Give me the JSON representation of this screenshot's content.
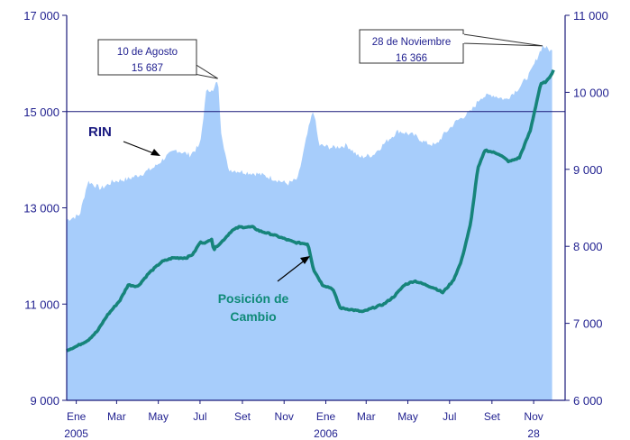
{
  "chart_data": {
    "type": "area",
    "title": "",
    "xlabel": "",
    "ylabel": "",
    "left_axis": {
      "ylim": [
        9000,
        17000
      ],
      "ticks": [
        9000,
        11000,
        13000,
        15000,
        17000
      ],
      "tick_labels": [
        "9 000",
        "11 000",
        "13 000",
        "15 000",
        "17 000"
      ]
    },
    "right_axis": {
      "ylim": [
        6000,
        11000
      ],
      "ticks": [
        6000,
        7000,
        8000,
        9000,
        10000,
        11000
      ],
      "tick_labels": [
        "6 000",
        "7 000",
        "8 000",
        "9 000",
        "10 000",
        "11 000"
      ]
    },
    "x_range": [
      "2005-01-01",
      "2006-12-31"
    ],
    "x_ticks": [
      {
        "date": "2005-01-15",
        "label": "Ene",
        "year": "2005"
      },
      {
        "date": "2005-03-15",
        "label": "Mar",
        "year": ""
      },
      {
        "date": "2005-05-15",
        "label": "May",
        "year": ""
      },
      {
        "date": "2005-07-15",
        "label": "Jul",
        "year": ""
      },
      {
        "date": "2005-09-15",
        "label": "Set",
        "year": ""
      },
      {
        "date": "2005-11-15",
        "label": "Nov",
        "year": ""
      },
      {
        "date": "2006-01-15",
        "label": "Ene",
        "year": "2006"
      },
      {
        "date": "2006-03-15",
        "label": "Mar",
        "year": ""
      },
      {
        "date": "2006-05-15",
        "label": "May",
        "year": ""
      },
      {
        "date": "2006-07-15",
        "label": "Jul",
        "year": ""
      },
      {
        "date": "2006-09-15",
        "label": "Set",
        "year": ""
      },
      {
        "date": "2006-11-15",
        "label": "Nov",
        "year": "28"
      }
    ],
    "grid": {
      "horizontal_at_left": [
        15000
      ]
    },
    "series": [
      {
        "name": "RIN",
        "axis": "left",
        "style": "area",
        "color": "#a7cdfb",
        "points": [
          [
            "2005-01-01",
            12750
          ],
          [
            "2005-01-20",
            12850
          ],
          [
            "2005-02-01",
            13550
          ],
          [
            "2005-02-20",
            13400
          ],
          [
            "2005-03-10",
            13550
          ],
          [
            "2005-04-01",
            13600
          ],
          [
            "2005-04-20",
            13700
          ],
          [
            "2005-05-10",
            13850
          ],
          [
            "2005-05-25",
            14050
          ],
          [
            "2005-06-10",
            14200
          ],
          [
            "2005-06-30",
            14100
          ],
          [
            "2005-07-15",
            14300
          ],
          [
            "2005-07-25",
            15500
          ],
          [
            "2005-08-03",
            15400
          ],
          [
            "2005-08-10",
            15687
          ],
          [
            "2005-08-15",
            14600
          ],
          [
            "2005-08-25",
            13800
          ],
          [
            "2005-09-15",
            13750
          ],
          [
            "2005-10-10",
            13700
          ],
          [
            "2005-11-01",
            13600
          ],
          [
            "2005-11-20",
            13500
          ],
          [
            "2005-12-05",
            13600
          ],
          [
            "2005-12-20",
            14600
          ],
          [
            "2005-12-28",
            15050
          ],
          [
            "2006-01-05",
            14300
          ],
          [
            "2006-01-25",
            14250
          ],
          [
            "2006-02-15",
            14300
          ],
          [
            "2006-03-05",
            14050
          ],
          [
            "2006-03-25",
            14100
          ],
          [
            "2006-04-15",
            14400
          ],
          [
            "2006-05-01",
            14600
          ],
          [
            "2006-05-25",
            14500
          ],
          [
            "2006-06-10",
            14350
          ],
          [
            "2006-06-25",
            14300
          ],
          [
            "2006-07-05",
            14500
          ],
          [
            "2006-07-25",
            14800
          ],
          [
            "2006-08-15",
            15000
          ],
          [
            "2006-08-30",
            15300
          ],
          [
            "2006-09-15",
            15350
          ],
          [
            "2006-10-05",
            15250
          ],
          [
            "2006-10-25",
            15500
          ],
          [
            "2006-11-10",
            15800
          ],
          [
            "2006-11-28",
            16366
          ],
          [
            "2006-12-12",
            16250
          ]
        ]
      },
      {
        "name": "Posición de Cambio",
        "axis": "right",
        "style": "line",
        "color": "#16847a",
        "points": [
          [
            "2005-01-01",
            6650
          ],
          [
            "2005-01-15",
            6700
          ],
          [
            "2005-02-01",
            6780
          ],
          [
            "2005-02-15",
            6900
          ],
          [
            "2005-03-01",
            7100
          ],
          [
            "2005-03-20",
            7300
          ],
          [
            "2005-04-01",
            7500
          ],
          [
            "2005-04-15",
            7480
          ],
          [
            "2005-05-01",
            7650
          ],
          [
            "2005-05-20",
            7800
          ],
          [
            "2005-06-05",
            7850
          ],
          [
            "2005-06-25",
            7850
          ],
          [
            "2005-07-05",
            7900
          ],
          [
            "2005-07-15",
            8050
          ],
          [
            "2005-07-25",
            8050
          ],
          [
            "2005-08-01",
            8100
          ],
          [
            "2005-08-04",
            7950
          ],
          [
            "2005-08-08",
            8000
          ],
          [
            "2005-08-15",
            8050
          ],
          [
            "2005-08-30",
            8200
          ],
          [
            "2005-09-10",
            8250
          ],
          [
            "2005-09-30",
            8250
          ],
          [
            "2005-10-10",
            8200
          ],
          [
            "2005-10-30",
            8150
          ],
          [
            "2005-11-15",
            8100
          ],
          [
            "2005-12-01",
            8050
          ],
          [
            "2005-12-20",
            8030
          ],
          [
            "2005-12-28",
            7700
          ],
          [
            "2006-01-10",
            7500
          ],
          [
            "2006-01-25",
            7450
          ],
          [
            "2006-02-05",
            7200
          ],
          [
            "2006-02-20",
            7180
          ],
          [
            "2006-03-10",
            7150
          ],
          [
            "2006-03-25",
            7200
          ],
          [
            "2006-04-10",
            7250
          ],
          [
            "2006-04-25",
            7350
          ],
          [
            "2006-05-10",
            7500
          ],
          [
            "2006-05-25",
            7550
          ],
          [
            "2006-06-10",
            7500
          ],
          [
            "2006-06-25",
            7450
          ],
          [
            "2006-07-05",
            7400
          ],
          [
            "2006-07-20",
            7550
          ],
          [
            "2006-08-01",
            7800
          ],
          [
            "2006-08-15",
            8300
          ],
          [
            "2006-08-25",
            9000
          ],
          [
            "2006-09-05",
            9250
          ],
          [
            "2006-09-25",
            9200
          ],
          [
            "2006-10-10",
            9100
          ],
          [
            "2006-10-25",
            9150
          ],
          [
            "2006-11-10",
            9500
          ],
          [
            "2006-11-25",
            10100
          ],
          [
            "2006-12-05",
            10150
          ],
          [
            "2006-12-15",
            10300
          ]
        ]
      }
    ],
    "annotations": [
      {
        "lines": [
          "10 de Agosto",
          "15 687"
        ]
      },
      {
        "lines": [
          "28 de Noviembre",
          "16 366"
        ]
      }
    ],
    "labels": [
      {
        "text": "RIN"
      },
      {
        "lines": [
          "Posición de",
          "Cambio"
        ]
      }
    ]
  }
}
